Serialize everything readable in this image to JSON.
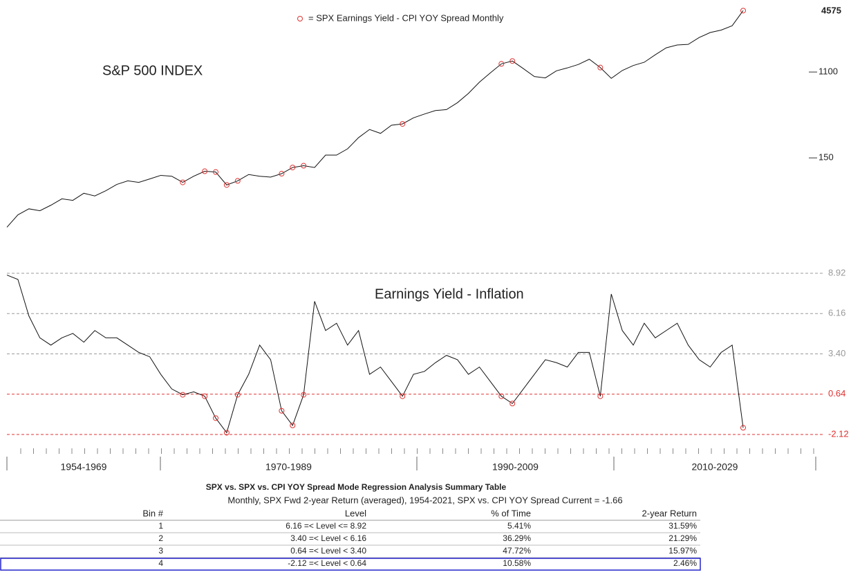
{
  "chart_data": [
    {
      "type": "line",
      "annotation": "S&P 500 INDEX",
      "log_scale": true,
      "color": "#111111",
      "marker_color": "#e03030",
      "legend": "= SPX Earnings Yield - CPI YOY Spread Monthly",
      "categories": [
        null,
        null,
        null,
        null,
        null,
        null,
        null,
        null,
        null,
        null,
        null,
        null,
        null,
        null,
        null,
        null,
        null,
        null,
        null,
        null,
        null,
        null,
        null,
        null,
        null,
        null,
        null,
        null,
        null,
        null,
        null,
        null,
        null,
        null,
        null,
        null,
        null,
        null,
        null,
        null,
        null,
        null,
        null,
        null,
        null,
        null,
        null,
        null,
        null,
        null,
        null,
        null,
        null,
        null,
        null,
        null,
        null,
        null,
        null,
        null,
        null,
        null,
        null,
        null,
        null,
        null,
        null,
        null
      ],
      "values": [
        30,
        40,
        46,
        44,
        50,
        58,
        56,
        66,
        62,
        70,
        81,
        88,
        85,
        92,
        100,
        98,
        85,
        98,
        110,
        108,
        80,
        88,
        102,
        98,
        96,
        104,
        120,
        125,
        120,
        160,
        160,
        185,
        240,
        290,
        265,
        320,
        330,
        380,
        415,
        450,
        460,
        540,
        670,
        870,
        1080,
        1330,
        1420,
        1190,
        990,
        960,
        1130,
        1210,
        1310,
        1480,
        1220,
        950,
        1140,
        1280,
        1380,
        1640,
        1930,
        2060,
        2090,
        2450,
        2750,
        2910,
        3220,
        4575
      ],
      "ylim": [
        23,
        5400
      ],
      "yticks": [
        150,
        1100
      ]
    },
    {
      "type": "line",
      "annotation": "Earnings Yield - Inflation",
      "color": "#111111",
      "marker_color": "#e03030",
      "categories": [
        null,
        null,
        null,
        null,
        null,
        null,
        null,
        null,
        null,
        null,
        null,
        null,
        null,
        null,
        null,
        null,
        null,
        null,
        null,
        null,
        null,
        null,
        null,
        null,
        null,
        null,
        null,
        null,
        null,
        null,
        null,
        null,
        null,
        null,
        null,
        null,
        null,
        null,
        null,
        null,
        null,
        null,
        null,
        null,
        null,
        null,
        null,
        null,
        null,
        null,
        null,
        null,
        null,
        null,
        null,
        null,
        null,
        null,
        null,
        null,
        null,
        null,
        null,
        null,
        null,
        null,
        null,
        null
      ],
      "values": [
        8.8,
        8.5,
        6,
        4.5,
        4,
        4.5,
        4.8,
        4.2,
        5,
        4.5,
        4.5,
        4,
        3.5,
        3.2,
        2,
        1,
        0.6,
        0.8,
        0.5,
        -1,
        -2,
        0.6,
        2,
        4,
        3,
        -0.5,
        -1.5,
        0.6,
        7,
        5,
        5.5,
        4,
        5,
        2,
        2.5,
        1.5,
        0.5,
        2,
        2.2,
        2.8,
        3.3,
        3,
        2,
        2.5,
        1.5,
        0.5,
        0,
        1,
        2,
        3,
        2.8,
        2.5,
        3.5,
        3.5,
        0.5,
        7.5,
        5,
        4,
        5.5,
        4.5,
        5,
        5.5,
        4,
        3,
        2.5,
        3.5,
        4,
        -1.66
      ],
      "ylim": [
        -2.5,
        9.3
      ],
      "yticks": [
        -2.12,
        0.64,
        {
          "value": 3.4,
          "label": "3.40"
        },
        6.16,
        8.92
      ],
      "grid_colors": [
        "#e03030",
        "#e03030",
        "#999999",
        "#999999",
        "#999999"
      ],
      "x_period_labels": [
        "1954-1969",
        "1970-1989",
        "1990-2009",
        "2010-2029"
      ]
    }
  ],
  "table": {
    "title": "SPX vs. SPX vs. CPI YOY Spread Mode Regression Analysis Summary Table",
    "subtitle": "Monthly, SPX Fwd 2-year Return (averaged), 1954-2021, SPX vs. CPI YOY Spread Current = -1.66",
    "header": [
      "Bin #",
      "Level",
      "% of Time",
      "2-year Return"
    ],
    "rows": [
      [
        "1",
        "6.16 =< Level <= 8.92",
        "5.41%",
        "31.59%"
      ],
      [
        "2",
        "3.40 =< Level < 6.16",
        "36.29%",
        "21.29%"
      ],
      [
        "3",
        "0.64 =< Level < 3.40",
        "47.72%",
        "15.97%"
      ],
      [
        "4",
        "-2.12 =< Level < 0.64",
        "10.58%",
        "2.46%"
      ]
    ],
    "highlight_row": 3,
    "highlight_color": "#2222cc"
  }
}
